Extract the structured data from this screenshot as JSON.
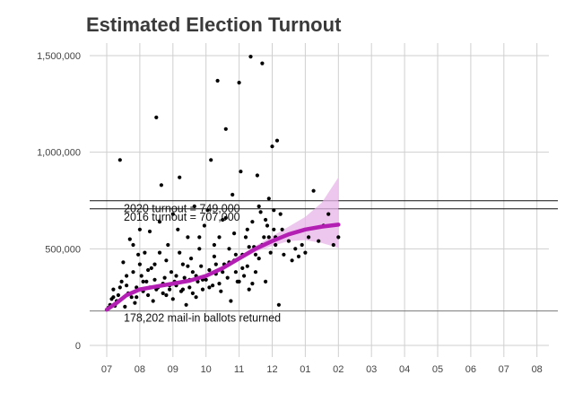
{
  "chart_data": {
    "type": "scatter",
    "title": "Estimated Election Turnout",
    "xlabel": "",
    "ylabel": "",
    "grid": true,
    "legend": "none",
    "x_ticks": [
      "07",
      "08",
      "09",
      "10",
      "11",
      "12",
      "01",
      "02",
      "03",
      "04",
      "05",
      "06",
      "07",
      "08"
    ],
    "xlim": [
      0,
      13.3
    ],
    "ylim": [
      0,
      1500000
    ],
    "y_ticks": [
      0,
      500000,
      1000000,
      1500000
    ],
    "y_tick_labels": [
      "0",
      "500,000",
      "1,000,000",
      "1,500,000"
    ],
    "reference_lines": [
      {
        "y": 749000,
        "label": "2020 turnout = 749,000"
      },
      {
        "y": 707000,
        "label": "2016 turnout = 707,000"
      }
    ],
    "baseline": {
      "y": 178202,
      "label": "178,202 mail-in ballots returned"
    },
    "trend": {
      "color": "#b31fb3",
      "band_color": "#e8b4e8",
      "x": [
        0.0,
        0.3,
        0.6,
        1.0,
        1.5,
        2.0,
        2.5,
        3.0,
        3.5,
        4.0,
        4.5,
        5.0,
        5.5,
        6.0,
        6.5,
        7.0
      ],
      "y": [
        185000,
        220000,
        260000,
        290000,
        305000,
        320000,
        335000,
        360000,
        400000,
        450000,
        500000,
        540000,
        575000,
        600000,
        615000,
        625000
      ],
      "lower": [
        180000,
        212000,
        252000,
        282000,
        298000,
        314000,
        328000,
        352000,
        390000,
        438000,
        485000,
        515000,
        540000,
        545000,
        530000,
        505000
      ],
      "upper": [
        190000,
        228000,
        268000,
        298000,
        312000,
        327000,
        342000,
        368000,
        410000,
        462000,
        515000,
        565000,
        615000,
        665000,
        740000,
        870000
      ]
    },
    "series": [
      {
        "color": "#000000",
        "points": [
          [
            0.05,
            195000
          ],
          [
            0.1,
            210000
          ],
          [
            0.15,
            240000
          ],
          [
            0.2,
            250000
          ],
          [
            0.25,
            205000
          ],
          [
            0.3,
            230000
          ],
          [
            0.4,
            300000
          ],
          [
            0.4,
            960000
          ],
          [
            0.5,
            430000
          ],
          [
            0.55,
            200000
          ],
          [
            0.6,
            310000
          ],
          [
            0.65,
            270000
          ],
          [
            0.7,
            550000
          ],
          [
            0.75,
            250000
          ],
          [
            0.8,
            380000
          ],
          [
            0.85,
            220000
          ],
          [
            0.9,
            300000
          ],
          [
            0.95,
            470000
          ],
          [
            1.0,
            420000
          ],
          [
            1.05,
            360000
          ],
          [
            1.1,
            280000
          ],
          [
            1.15,
            480000
          ],
          [
            1.2,
            330000
          ],
          [
            1.25,
            260000
          ],
          [
            1.3,
            590000
          ],
          [
            1.35,
            400000
          ],
          [
            1.4,
            230000
          ],
          [
            1.45,
            340000
          ],
          [
            1.5,
            1180000
          ],
          [
            1.55,
            300000
          ],
          [
            1.6,
            480000
          ],
          [
            1.65,
            830000
          ],
          [
            1.7,
            270000
          ],
          [
            1.75,
            350000
          ],
          [
            1.8,
            440000
          ],
          [
            1.85,
            520000
          ],
          [
            1.9,
            290000
          ],
          [
            1.95,
            380000
          ],
          [
            2.0,
            240000
          ],
          [
            2.0,
            680000
          ],
          [
            2.05,
            330000
          ],
          [
            2.1,
            310000
          ],
          [
            2.15,
            600000
          ],
          [
            2.2,
            870000
          ],
          [
            2.25,
            280000
          ],
          [
            2.3,
            420000
          ],
          [
            2.35,
            350000
          ],
          [
            2.4,
            210000
          ],
          [
            2.45,
            560000
          ],
          [
            2.5,
            300000
          ],
          [
            2.55,
            450000
          ],
          [
            2.6,
            380000
          ],
          [
            2.65,
            720000
          ],
          [
            2.7,
            250000
          ],
          [
            2.75,
            330000
          ],
          [
            2.8,
            500000
          ],
          [
            2.85,
            410000
          ],
          [
            2.9,
            290000
          ],
          [
            2.95,
            620000
          ],
          [
            3.0,
            340000
          ],
          [
            3.05,
            700000
          ],
          [
            3.1,
            390000
          ],
          [
            3.15,
            960000
          ],
          [
            3.2,
            310000
          ],
          [
            3.25,
            460000
          ],
          [
            3.3,
            370000
          ],
          [
            3.35,
            1370000
          ],
          [
            3.4,
            560000
          ],
          [
            3.45,
            280000
          ],
          [
            3.5,
            650000
          ],
          [
            3.55,
            420000
          ],
          [
            3.6,
            1120000
          ],
          [
            3.65,
            350000
          ],
          [
            3.7,
            500000
          ],
          [
            3.75,
            230000
          ],
          [
            3.8,
            780000
          ],
          [
            3.85,
            440000
          ],
          [
            3.9,
            380000
          ],
          [
            3.95,
            330000
          ],
          [
            4.0,
            1360000
          ],
          [
            4.05,
            900000
          ],
          [
            4.1,
            470000
          ],
          [
            4.15,
            360000
          ],
          [
            4.2,
            560000
          ],
          [
            4.25,
            410000
          ],
          [
            4.3,
            290000
          ],
          [
            4.35,
            1495000
          ],
          [
            4.4,
            640000
          ],
          [
            4.45,
            510000
          ],
          [
            4.5,
            380000
          ],
          [
            4.55,
            880000
          ],
          [
            4.6,
            450000
          ],
          [
            4.65,
            690000
          ],
          [
            4.7,
            1460000
          ],
          [
            4.75,
            560000
          ],
          [
            4.8,
            330000
          ],
          [
            4.85,
            620000
          ],
          [
            4.9,
            760000
          ],
          [
            4.95,
            480000
          ],
          [
            5.0,
            1030000
          ],
          [
            5.05,
            600000
          ],
          [
            5.1,
            520000
          ],
          [
            5.15,
            1060000
          ],
          [
            5.2,
            210000
          ],
          [
            5.25,
            680000
          ],
          [
            5.35,
            470000
          ],
          [
            5.5,
            540000
          ],
          [
            5.6,
            440000
          ],
          [
            5.7,
            500000
          ],
          [
            5.8,
            460000
          ],
          [
            5.9,
            520000
          ],
          [
            6.0,
            480000
          ],
          [
            6.1,
            560000
          ],
          [
            6.25,
            800000
          ],
          [
            6.4,
            540000
          ],
          [
            6.55,
            620000
          ],
          [
            6.7,
            680000
          ],
          [
            6.85,
            520000
          ],
          [
            7.0,
            560000
          ],
          [
            0.2,
            290000
          ],
          [
            0.35,
            260000
          ],
          [
            0.45,
            330000
          ],
          [
            0.6,
            360000
          ],
          [
            0.9,
            250000
          ],
          [
            1.1,
            330000
          ],
          [
            1.3,
            300000
          ],
          [
            1.5,
            290000
          ],
          [
            1.7,
            320000
          ],
          [
            1.9,
            310000
          ],
          [
            2.1,
            360000
          ],
          [
            2.3,
            290000
          ],
          [
            2.5,
            340000
          ],
          [
            2.7,
            360000
          ],
          [
            2.9,
            340000
          ],
          [
            3.1,
            300000
          ],
          [
            3.3,
            420000
          ],
          [
            3.5,
            380000
          ],
          [
            3.7,
            430000
          ],
          [
            3.9,
            470000
          ],
          [
            4.1,
            400000
          ],
          [
            4.3,
            510000
          ],
          [
            4.5,
            470000
          ],
          [
            4.7,
            520000
          ],
          [
            4.9,
            560000
          ],
          [
            5.1,
            560000
          ],
          [
            5.3,
            600000
          ],
          [
            1.25,
            390000
          ],
          [
            1.45,
            420000
          ],
          [
            2.45,
            410000
          ],
          [
            3.25,
            520000
          ],
          [
            3.85,
            580000
          ],
          [
            4.25,
            600000
          ],
          [
            4.6,
            720000
          ],
          [
            4.8,
            650000
          ],
          [
            5.05,
            700000
          ],
          [
            1.8,
            260000
          ],
          [
            2.6,
            270000
          ],
          [
            3.4,
            320000
          ],
          [
            4.0,
            330000
          ],
          [
            4.4,
            320000
          ],
          [
            0.8,
            520000
          ],
          [
            1.0,
            600000
          ],
          [
            1.6,
            640000
          ],
          [
            2.2,
            480000
          ],
          [
            2.8,
            560000
          ],
          [
            3.6,
            660000
          ]
        ]
      }
    ]
  }
}
